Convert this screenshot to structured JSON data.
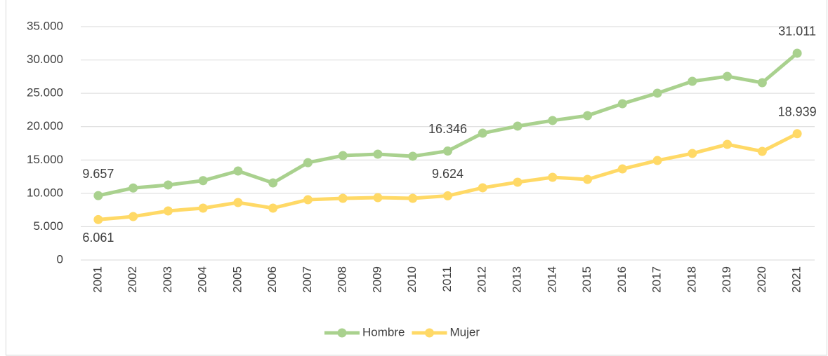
{
  "chart_data": {
    "type": "line",
    "categories": [
      "2001",
      "2002",
      "2003",
      "2004",
      "2005",
      "2006",
      "2007",
      "2008",
      "2009",
      "2010",
      "2011",
      "2012",
      "2013",
      "2014",
      "2015",
      "2016",
      "2017",
      "2018",
      "2019",
      "2020",
      "2021"
    ],
    "series": [
      {
        "name": "Hombre",
        "color": "#a9d18e",
        "values": [
          9657,
          10800,
          11250,
          11900,
          13350,
          11560,
          14600,
          15660,
          15870,
          15560,
          16346,
          19020,
          20080,
          20920,
          21650,
          23440,
          25020,
          26800,
          27540,
          26590,
          31011
        ],
        "value_labels": [
          "9.657",
          null,
          null,
          null,
          null,
          null,
          null,
          null,
          null,
          null,
          "16.346",
          null,
          null,
          null,
          null,
          null,
          null,
          null,
          null,
          null,
          "31.011"
        ]
      },
      {
        "name": "Mujer",
        "color": "#ffd966",
        "values": [
          6061,
          6520,
          7360,
          7780,
          8620,
          7780,
          9040,
          9250,
          9350,
          9250,
          9624,
          10830,
          11670,
          12400,
          12090,
          13660,
          14920,
          15980,
          17340,
          16290,
          18939
        ],
        "value_labels": [
          "6.061",
          null,
          null,
          null,
          null,
          null,
          null,
          null,
          null,
          null,
          "9.624",
          null,
          null,
          null,
          null,
          null,
          null,
          null,
          null,
          null,
          "18.939"
        ]
      }
    ],
    "ylim": [
      0,
      35000
    ],
    "yticks": [
      0,
      {
        "value": 5000,
        "label": "5.000"
      },
      {
        "value": 10000,
        "label": "10.000"
      },
      {
        "value": 15000,
        "label": "15.000"
      },
      {
        "value": 20000,
        "label": "20.000"
      },
      {
        "value": 25000,
        "label": "25.000"
      },
      {
        "value": 30000,
        "label": "30.000"
      },
      {
        "value": 35000,
        "label": "35.000"
      }
    ],
    "grid": true,
    "legend": "bottom"
  }
}
